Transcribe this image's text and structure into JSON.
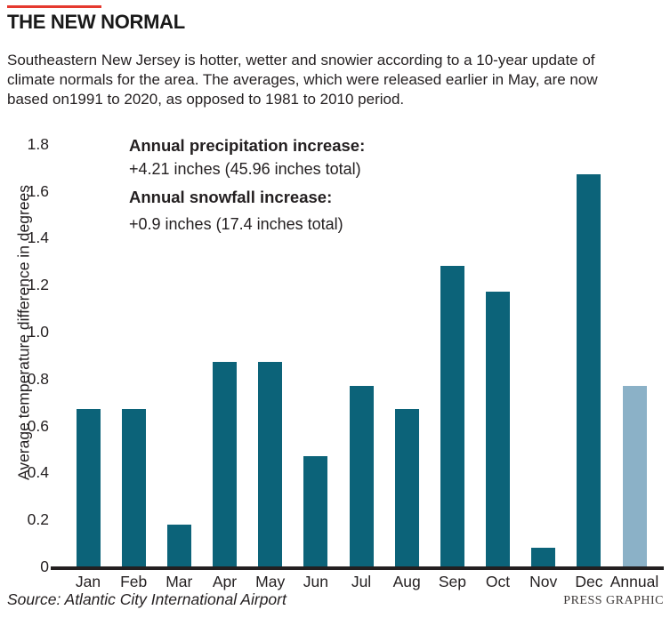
{
  "header": {
    "title": "THE NEW NORMAL",
    "intro_lines": [
      "Southeastern New Jersey is hotter, wetter and snowier according to a 10-year update of",
      "climate normals for the area. The averages, which were released earlier in May, are now",
      "based on1991 to 2020, as opposed to 1981 to 2010 period."
    ]
  },
  "chart_data": {
    "type": "bar",
    "categories": [
      "Jan",
      "Feb",
      "Mar",
      "Apr",
      "May",
      "Jun",
      "Jul",
      "Aug",
      "Sep",
      "Oct",
      "Nov",
      "Dec",
      "Annual"
    ],
    "values": [
      0.67,
      0.67,
      0.18,
      0.87,
      0.87,
      0.47,
      0.77,
      0.67,
      1.28,
      1.17,
      0.08,
      1.67,
      0.77
    ],
    "ylabel": "Average temperature difference in degrees",
    "xlabel": "",
    "ylim": [
      0,
      1.8
    ],
    "ytick_labels": [
      "1.8",
      "1.6",
      "1.4",
      "1.2",
      "1.0",
      "0.8",
      "0.6",
      "0.4",
      "0.2",
      "0"
    ],
    "grid": false,
    "legend": "none",
    "highlight_category": "Annual",
    "annotations": [
      {
        "label": "Annual precipitation increase:",
        "value": "+4.21 inches (45.96 inches total)"
      },
      {
        "label": "Annual snowfall increase:",
        "value": "+0.9 inches (17.4 inches total)"
      }
    ]
  },
  "footer": {
    "source": "Source: Atlantic City International Airport",
    "credit": "PRESS GRAPHIC"
  },
  "colors": {
    "bar": "#0c6379",
    "bar_annual": "#8bb1c7",
    "accent_red": "#e5392f",
    "axis": "#231f20",
    "text": "#231f20",
    "credit_gray": "#3e3a39"
  }
}
